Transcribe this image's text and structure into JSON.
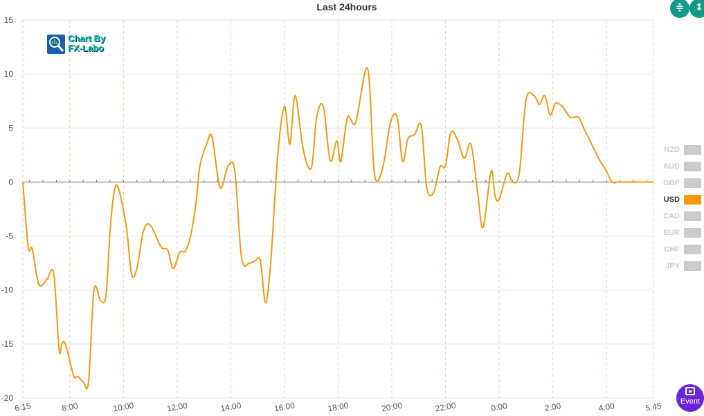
{
  "title": "Last 24hours",
  "logo": {
    "line1": "Chart By",
    "line2": "FX-Labo"
  },
  "toolbar": {
    "collapse_icon": "compress-vertical-icon",
    "expand_icon": "expand-vertical-icon"
  },
  "event_button": {
    "label": "Event",
    "icon": "calendar-icon"
  },
  "colors": {
    "usd": "#f59a0c",
    "inactive": "#cccccc",
    "grid": "#e6e6e6",
    "vgrid": "#f6c8b8",
    "event": "#6b25d8",
    "toolbar": "#119a8a"
  },
  "chart_data": {
    "type": "line",
    "title": "Last 24hours",
    "xlabel": "",
    "ylabel": "",
    "ylim": [
      -20,
      15
    ],
    "yticks": [
      15,
      10,
      5,
      0,
      -5,
      -10,
      -15,
      -20
    ],
    "xticks": [
      "6:15",
      "8:00",
      "10:00",
      "12:00",
      "14:00",
      "16:00",
      "18:00",
      "20:00",
      "22:00",
      "0:00",
      "2:00",
      "4:00",
      "5:45"
    ],
    "xtick_hours": [
      0,
      1.75,
      3.75,
      5.75,
      7.75,
      9.75,
      11.75,
      13.75,
      15.75,
      17.75,
      19.75,
      21.75,
      23.5
    ],
    "grid": true,
    "legend": "right",
    "legend_items": [
      "NZD",
      "AUD",
      "GBP",
      "USD",
      "CAD",
      "EUR",
      "CHF",
      "JPY"
    ],
    "active_series": "USD",
    "series": [
      {
        "name": "USD",
        "x": [
          0,
          0.2,
          0.35,
          0.6,
          0.9,
          1.15,
          1.35,
          1.45,
          1.55,
          1.7,
          1.9,
          2.05,
          2.25,
          2.45,
          2.65,
          2.9,
          3.1,
          3.25,
          3.4,
          3.55,
          3.85,
          4.05,
          4.25,
          4.5,
          4.75,
          5.15,
          5.4,
          5.6,
          5.85,
          6.05,
          6.25,
          6.45,
          6.6,
          6.85,
          7.05,
          7.35,
          7.65,
          7.9,
          8.15,
          8.45,
          8.65,
          8.85,
          9.05,
          9.25,
          9.5,
          9.75,
          9.95,
          10.15,
          10.45,
          10.75,
          10.95,
          11.2,
          11.45,
          11.7,
          11.85,
          12.1,
          12.4,
          12.85,
          13.1,
          13.4,
          13.7,
          13.95,
          14.15,
          14.35,
          14.6,
          14.85,
          15.05,
          15.3,
          15.55,
          15.75,
          15.95,
          16.2,
          16.45,
          16.7,
          16.95,
          17.15,
          17.45,
          17.6,
          17.75,
          18.05,
          18.25,
          18.5,
          18.75,
          19.05,
          19.25,
          19.45,
          19.65,
          19.85,
          20.1,
          20.4,
          20.7,
          20.9,
          21.1,
          21.3,
          21.5,
          21.75,
          21.95,
          22.2,
          22.35,
          22.65,
          22.95,
          23.15,
          23.35,
          23.5
        ],
        "values": [
          0,
          -6,
          -6.2,
          -9.5,
          -9,
          -8.5,
          -15.5,
          -15,
          -14.8,
          -16,
          -18,
          -18,
          -18.5,
          -18.5,
          -10,
          -11,
          -10.5,
          -4.5,
          -1,
          -0.5,
          -4,
          -8.5,
          -8,
          -4.5,
          -4,
          -6,
          -6.3,
          -8,
          -6.5,
          -6.4,
          -5,
          -2,
          1.5,
          3.5,
          4.2,
          -0.5,
          1.5,
          1,
          -7,
          -7.5,
          -7.3,
          -7.3,
          -11.2,
          -7,
          2.5,
          7,
          3.5,
          8,
          3,
          1.3,
          6,
          7,
          2,
          3.8,
          1.9,
          6,
          5.5,
          10.5,
          0.8,
          1.2,
          5.5,
          6,
          1.9,
          4,
          4.4,
          5.2,
          -0.5,
          -1,
          1.4,
          1.5,
          4.6,
          3.9,
          2.2,
          3.5,
          -1,
          -4.2,
          1,
          -1.3,
          -1.6,
          0.8,
          0,
          0.8,
          7.6,
          8,
          7.2,
          8,
          6.2,
          7.3,
          7,
          6,
          6,
          5,
          4,
          3,
          2,
          1,
          0,
          0,
          0,
          0,
          0,
          0,
          0,
          0
        ]
      }
    ]
  }
}
